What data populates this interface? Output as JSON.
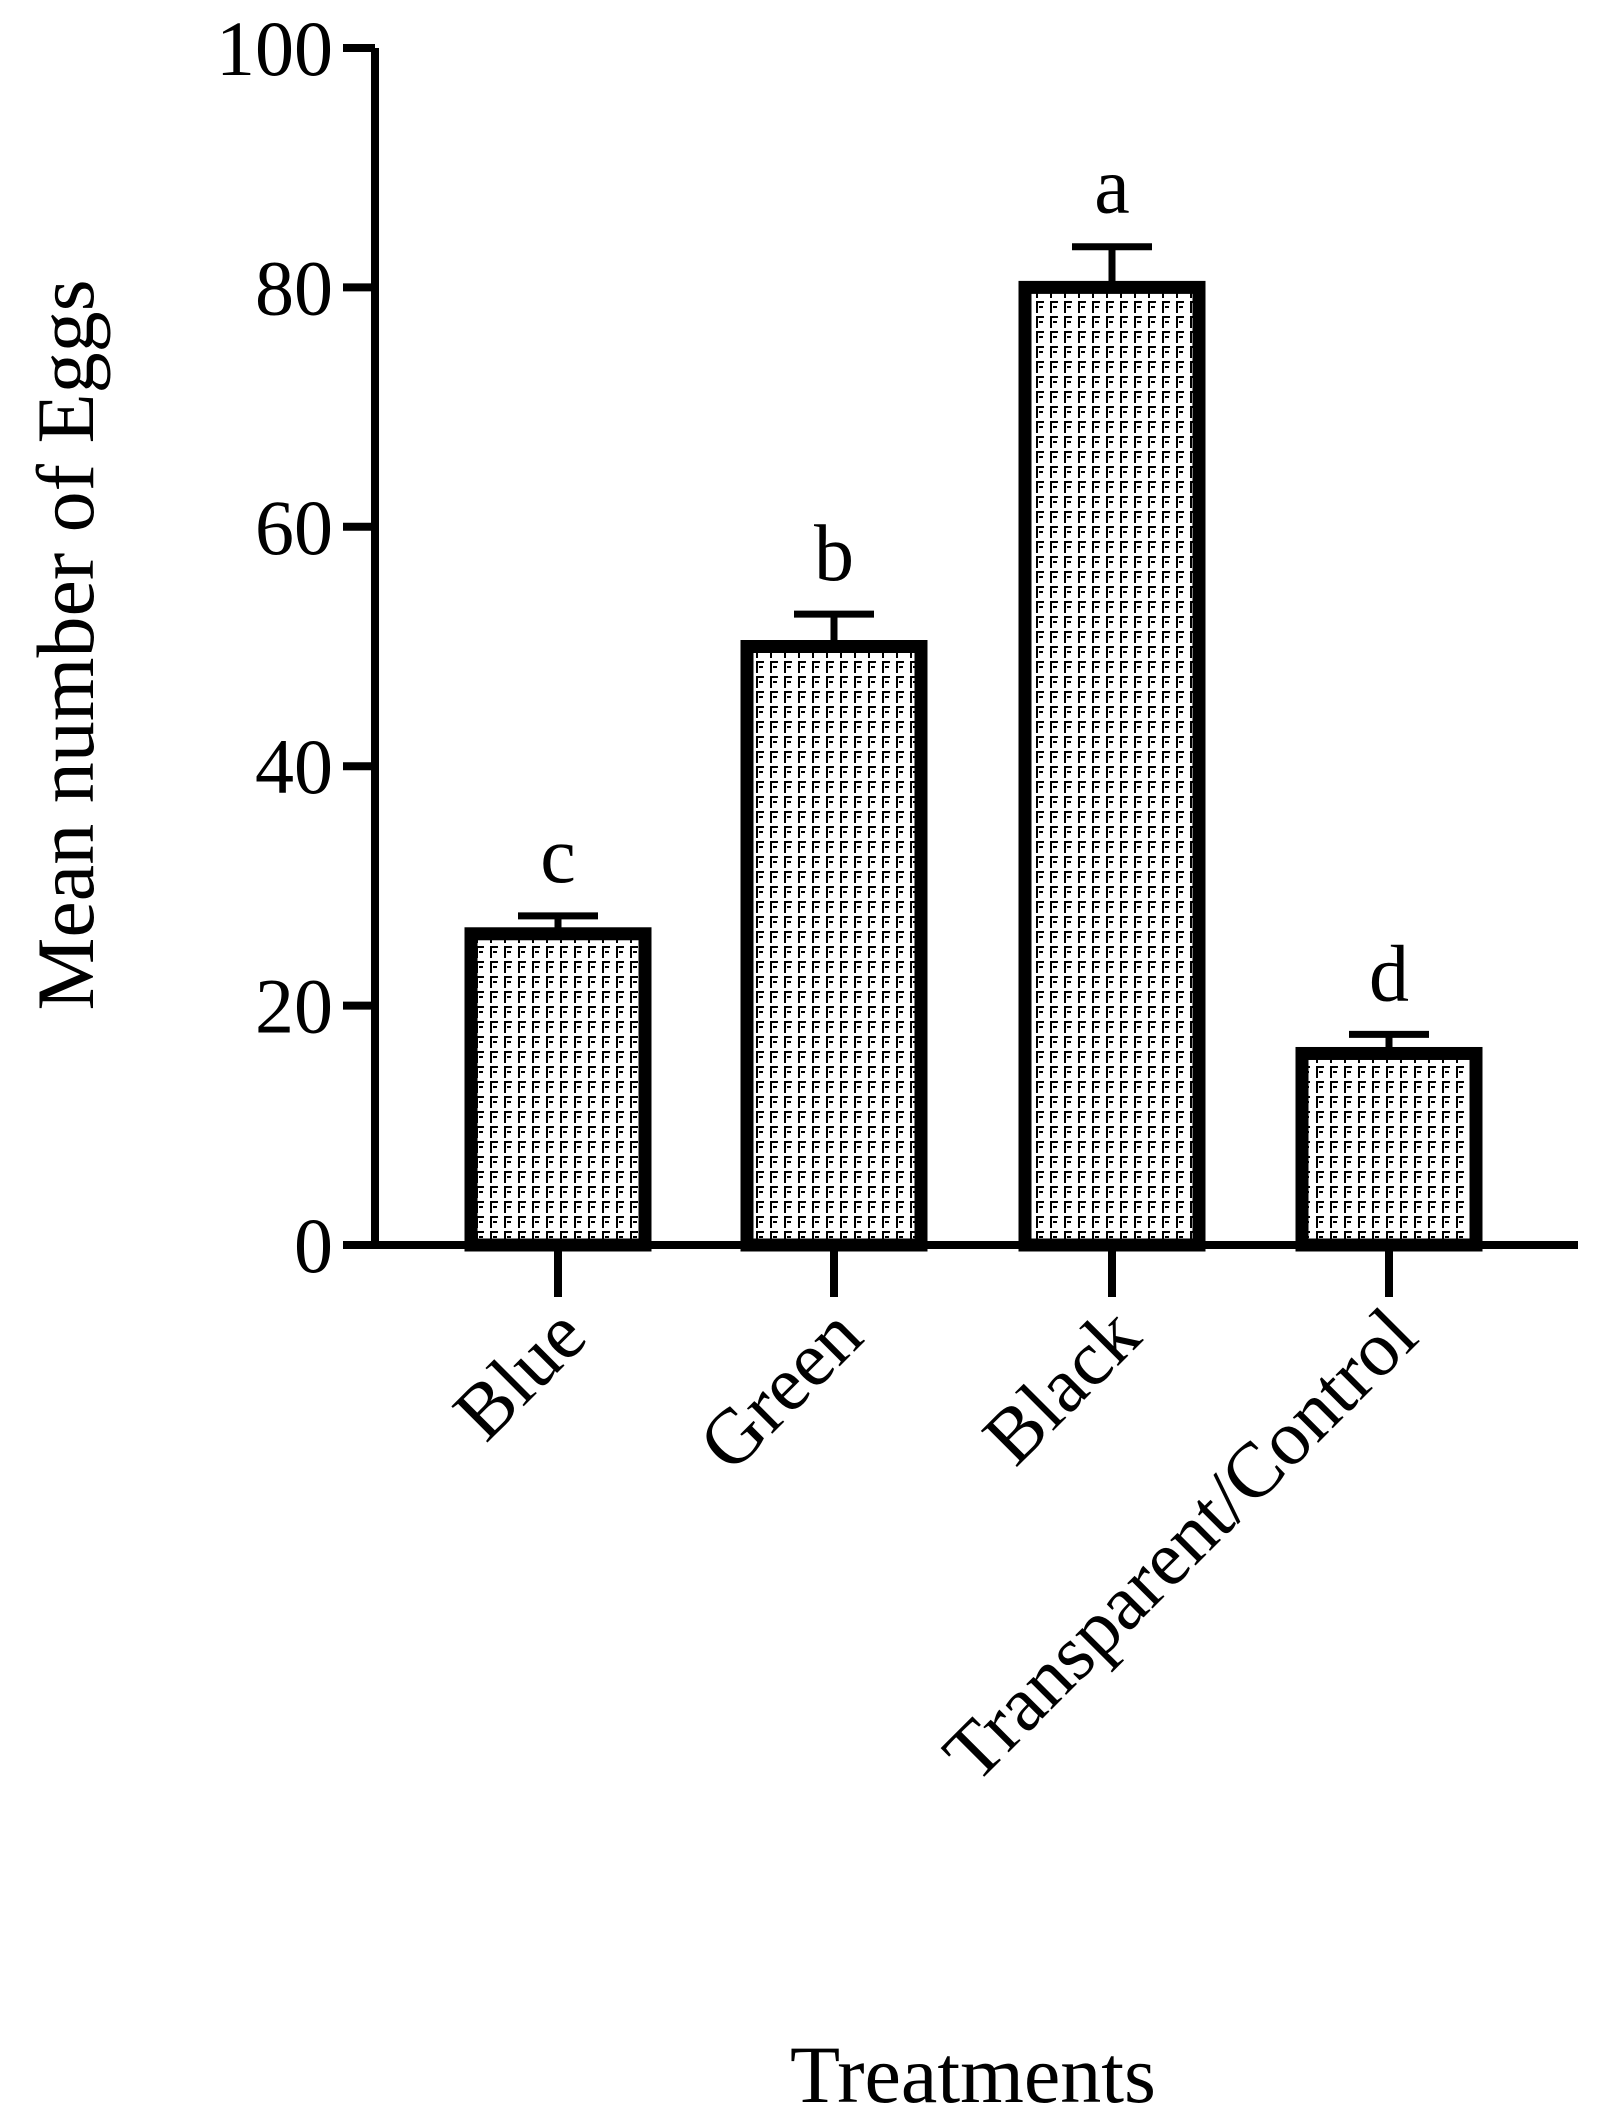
{
  "chart_data": {
    "type": "bar",
    "title": "",
    "xlabel": "Treatments",
    "ylabel": "Mean number of Eggs",
    "categories": [
      "Blue",
      "Green",
      "Black",
      "Transparent/Control"
    ],
    "values": [
      26,
      50,
      80,
      16
    ],
    "errors": [
      1.5,
      2.7,
      3.4,
      1.6
    ],
    "significance_letters": [
      "c",
      "b",
      "a",
      "d"
    ],
    "ylim": [
      0,
      100
    ],
    "yticks": [
      0,
      20,
      40,
      60,
      80,
      100
    ],
    "ytick_labels": [
      "0",
      "20",
      "40",
      "60",
      "80",
      "100"
    ],
    "grid": false,
    "legend": "none",
    "colors": {
      "axis": "#000000",
      "bar_outline": "#000000",
      "bar_fill": "#ffffff",
      "hatch": "#000000"
    }
  }
}
